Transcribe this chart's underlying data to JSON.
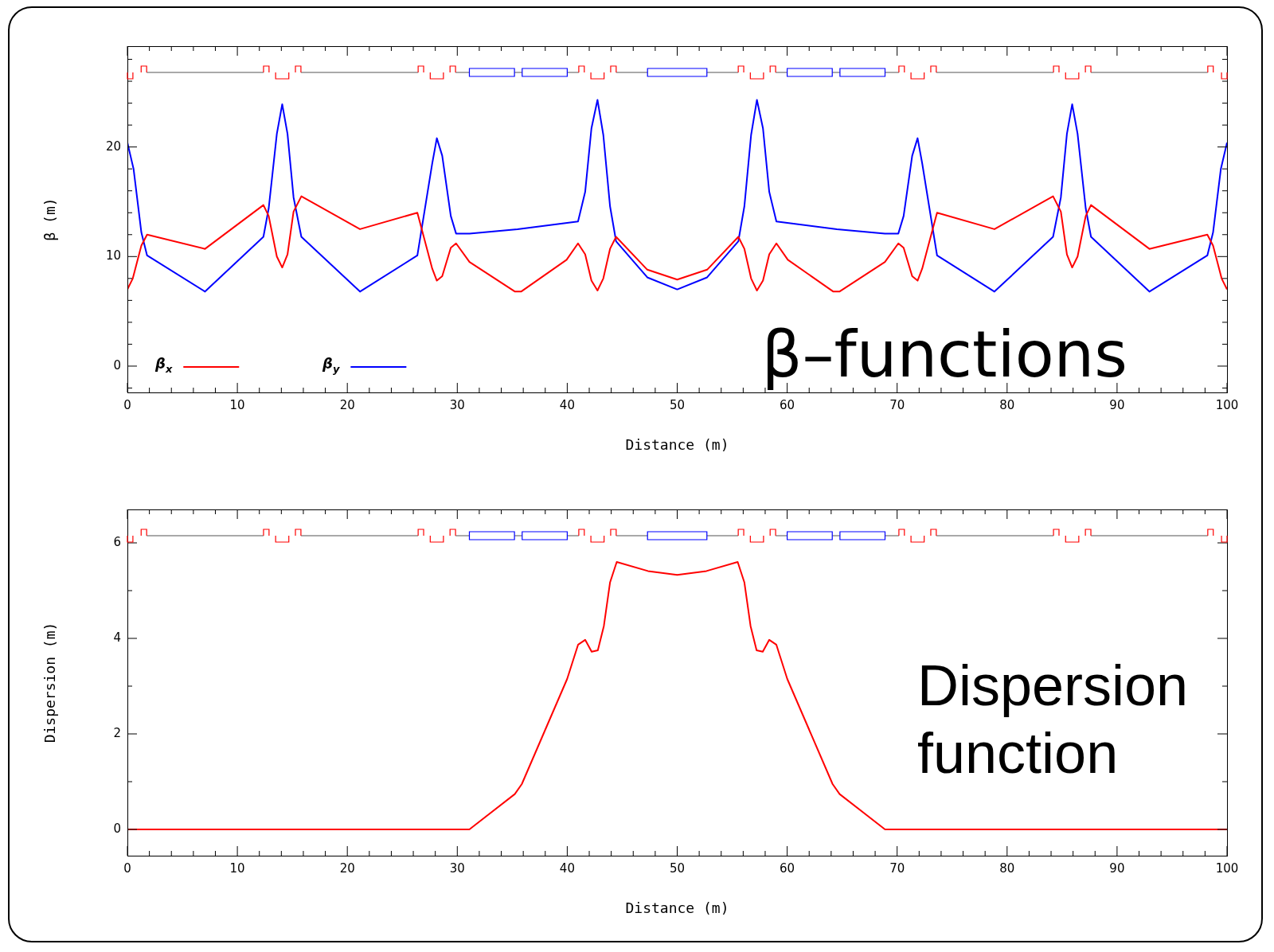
{
  "chart_data": [
    {
      "type": "line",
      "xlabel": "Distance (m)",
      "ylabel": "β (m)",
      "annotations": [
        "β–functions"
      ],
      "legend": "bottom left",
      "xlim": [
        0,
        100
      ],
      "ylim": [
        -2.4,
        29.2
      ],
      "xticks": [
        0,
        {
          "value": 2,
          "label": null
        },
        {
          "value": 4,
          "label": null
        },
        {
          "value": 6,
          "label": null
        },
        {
          "value": 8,
          "label": null
        },
        10,
        {
          "value": 12,
          "label": null
        },
        {
          "value": 14,
          "label": null
        },
        {
          "value": 16,
          "label": null
        },
        {
          "value": 18,
          "label": null
        },
        20,
        {
          "value": 22,
          "label": null
        },
        {
          "value": 24,
          "label": null
        },
        {
          "value": 26,
          "label": null
        },
        {
          "value": 28,
          "label": null
        },
        30,
        {
          "value": 32,
          "label": null
        },
        {
          "value": 34,
          "label": null
        },
        {
          "value": 36,
          "label": null
        },
        {
          "value": 38,
          "label": null
        },
        40,
        {
          "value": 42,
          "label": null
        },
        {
          "value": 44,
          "label": null
        },
        {
          "value": 46,
          "label": null
        },
        {
          "value": 48,
          "label": null
        },
        50,
        {
          "value": 52,
          "label": null
        },
        {
          "value": 54,
          "label": null
        },
        {
          "value": 56,
          "label": null
        },
        {
          "value": 58,
          "label": null
        },
        60,
        {
          "value": 62,
          "label": null
        },
        {
          "value": 64,
          "label": null
        },
        {
          "value": 66,
          "label": null
        },
        {
          "value": 68,
          "label": null
        },
        70,
        {
          "value": 72,
          "label": null
        },
        {
          "value": 74,
          "label": null
        },
        {
          "value": 76,
          "label": null
        },
        {
          "value": 78,
          "label": null
        },
        80,
        {
          "value": 82,
          "label": null
        },
        {
          "value": 84,
          "label": null
        },
        {
          "value": 86,
          "label": null
        },
        {
          "value": 88,
          "label": null
        },
        90,
        {
          "value": 92,
          "label": null
        },
        {
          "value": 94,
          "label": null
        },
        {
          "value": 96,
          "label": null
        },
        {
          "value": 98,
          "label": null
        },
        100
      ],
      "yticks": [
        {
          "value": -2,
          "label": null
        },
        0,
        {
          "value": 2,
          "label": null
        },
        {
          "value": 4,
          "label": null
        },
        {
          "value": 6,
          "label": null
        },
        {
          "value": 8,
          "label": null
        },
        10,
        {
          "value": 12,
          "label": null
        },
        {
          "value": 14,
          "label": null
        },
        {
          "value": 16,
          "label": null
        },
        {
          "value": 18,
          "label": null
        },
        20,
        {
          "value": 22,
          "label": null
        },
        {
          "value": 24,
          "label": null
        },
        {
          "value": 26,
          "label": null
        },
        {
          "value": 28,
          "label": null
        }
      ],
      "series": [
        {
          "name": "β$_{x}$",
          "color": "#ff0000",
          "x": [
            0,
            0.49,
            1.27,
            1.79,
            7.06,
            12.37,
            12.85,
            13.59,
            14.08,
            14.56,
            15.11,
            15.82,
            21.15,
            26.37,
            27.72,
            28.14,
            28.63,
            29.41,
            29.89,
            31.11,
            35.25,
            35.8,
            39.94,
            40.98,
            41.63,
            42.2,
            42.75,
            43.28,
            43.89,
            44.44,
            47.28,
            50,
            52.72,
            55.56,
            56.11,
            56.72,
            57.25,
            57.8,
            58.37,
            59.02,
            60.06,
            64.2,
            64.75,
            68.89,
            70.11,
            70.59,
            71.37,
            71.86,
            72.28,
            73.63,
            78.85,
            84.18,
            84.89,
            85.44,
            85.92,
            86.41,
            87.15,
            87.63,
            92.94,
            98.21,
            98.73,
            99.51,
            100
          ],
          "values": [
            7.0,
            8.0,
            11.0,
            12.0,
            10.7,
            14.7,
            13.7,
            10.0,
            9.0,
            10.2,
            14.1,
            15.5,
            12.5,
            14.0,
            8.9,
            7.8,
            8.2,
            10.8,
            11.2,
            9.5,
            6.8,
            6.8,
            9.7,
            11.2,
            10.2,
            7.8,
            6.9,
            8.0,
            10.7,
            11.8,
            8.8,
            7.9,
            8.8,
            11.8,
            10.7,
            8.0,
            6.9,
            7.8,
            10.2,
            11.2,
            9.7,
            6.8,
            6.8,
            9.5,
            11.2,
            10.8,
            8.2,
            7.8,
            8.9,
            14.0,
            12.5,
            15.5,
            14.1,
            10.2,
            9.0,
            10.0,
            13.7,
            14.7,
            10.7,
            12.0,
            11.0,
            8.0,
            7.0
          ]
        },
        {
          "name": "β$_{y}$",
          "color": "#0000ff",
          "x": [
            0,
            0.56,
            1.27,
            1.79,
            7.06,
            12.37,
            12.85,
            13.59,
            14.08,
            14.56,
            15.11,
            15.82,
            21.15,
            26.37,
            27.72,
            28.14,
            28.63,
            29.41,
            29.89,
            31.11,
            35.48,
            40.98,
            41.63,
            42.2,
            42.75,
            43.28,
            43.89,
            44.44,
            47.28,
            50,
            52.72,
            55.56,
            56.11,
            56.72,
            57.25,
            57.8,
            58.37,
            59.02,
            64.52,
            68.89,
            70.11,
            70.59,
            71.37,
            71.86,
            72.28,
            73.63,
            78.85,
            84.18,
            84.89,
            85.44,
            85.92,
            86.41,
            87.15,
            87.63,
            92.94,
            98.21,
            98.73,
            99.44,
            100
          ],
          "values": [
            20.4,
            18.0,
            12.2,
            10.1,
            6.8,
            11.8,
            14.4,
            21.2,
            23.9,
            21.2,
            15.4,
            11.8,
            6.8,
            10.1,
            18.5,
            20.8,
            19.2,
            13.7,
            12.1,
            12.1,
            12.5,
            13.2,
            15.9,
            21.7,
            24.3,
            21.1,
            14.6,
            11.4,
            8.1,
            7.0,
            8.1,
            11.4,
            14.6,
            21.1,
            24.3,
            21.7,
            15.9,
            13.2,
            12.5,
            12.1,
            12.1,
            13.7,
            19.2,
            20.8,
            18.5,
            10.1,
            6.8,
            11.8,
            15.4,
            21.2,
            23.9,
            21.2,
            14.4,
            11.8,
            6.8,
            10.1,
            12.2,
            18.0,
            20.4
          ]
        }
      ]
    },
    {
      "type": "line",
      "xlabel": "Distance (m)",
      "ylabel": "Dispersion (m)",
      "annotations": [
        "Dispersion function"
      ],
      "xlim": [
        0,
        100
      ],
      "ylim": [
        -0.55,
        6.7
      ],
      "xticks": [
        0,
        {
          "value": 2,
          "label": null
        },
        {
          "value": 4,
          "label": null
        },
        {
          "value": 6,
          "label": null
        },
        {
          "value": 8,
          "label": null
        },
        10,
        {
          "value": 12,
          "label": null
        },
        {
          "value": 14,
          "label": null
        },
        {
          "value": 16,
          "label": null
        },
        {
          "value": 18,
          "label": null
        },
        20,
        {
          "value": 22,
          "label": null
        },
        {
          "value": 24,
          "label": null
        },
        {
          "value": 26,
          "label": null
        },
        {
          "value": 28,
          "label": null
        },
        30,
        {
          "value": 32,
          "label": null
        },
        {
          "value": 34,
          "label": null
        },
        {
          "value": 36,
          "label": null
        },
        {
          "value": 38,
          "label": null
        },
        40,
        {
          "value": 42,
          "label": null
        },
        {
          "value": 44,
          "label": null
        },
        {
          "value": 46,
          "label": null
        },
        {
          "value": 48,
          "label": null
        },
        50,
        {
          "value": 52,
          "label": null
        },
        {
          "value": 54,
          "label": null
        },
        {
          "value": 56,
          "label": null
        },
        {
          "value": 58,
          "label": null
        },
        60,
        {
          "value": 62,
          "label": null
        },
        {
          "value": 64,
          "label": null
        },
        {
          "value": 66,
          "label": null
        },
        {
          "value": 68,
          "label": null
        },
        70,
        {
          "value": 72,
          "label": null
        },
        {
          "value": 74,
          "label": null
        },
        {
          "value": 76,
          "label": null
        },
        {
          "value": 78,
          "label": null
        },
        80,
        {
          "value": 82,
          "label": null
        },
        {
          "value": 84,
          "label": null
        },
        {
          "value": 86,
          "label": null
        },
        {
          "value": 88,
          "label": null
        },
        90,
        {
          "value": 92,
          "label": null
        },
        {
          "value": 94,
          "label": null
        },
        {
          "value": 96,
          "label": null
        },
        {
          "value": 98,
          "label": null
        },
        100
      ],
      "yticks": [
        0,
        {
          "value": 1,
          "label": null
        },
        2,
        {
          "value": 3,
          "label": null
        },
        4,
        {
          "value": 5,
          "label": null
        },
        6
      ],
      "series": [
        {
          "color": "#ff0000",
          "x": [
            0,
            31.1,
            35.23,
            35.87,
            39.99,
            40.99,
            41.63,
            42.22,
            42.78,
            43.33,
            43.89,
            44.5,
            47.34,
            50,
            52.66,
            55.5,
            56.11,
            56.67,
            57.22,
            57.78,
            58.37,
            59.01,
            60.01,
            64.13,
            64.77,
            68.9,
            100
          ],
          "values": [
            0,
            0,
            0.74,
            0.95,
            3.15,
            3.87,
            3.97,
            3.72,
            3.75,
            4.26,
            5.17,
            5.6,
            5.41,
            5.33,
            5.41,
            5.6,
            5.17,
            4.26,
            3.75,
            3.72,
            3.97,
            3.87,
            3.15,
            0.95,
            0.74,
            0,
            0
          ]
        }
      ]
    }
  ]
}
